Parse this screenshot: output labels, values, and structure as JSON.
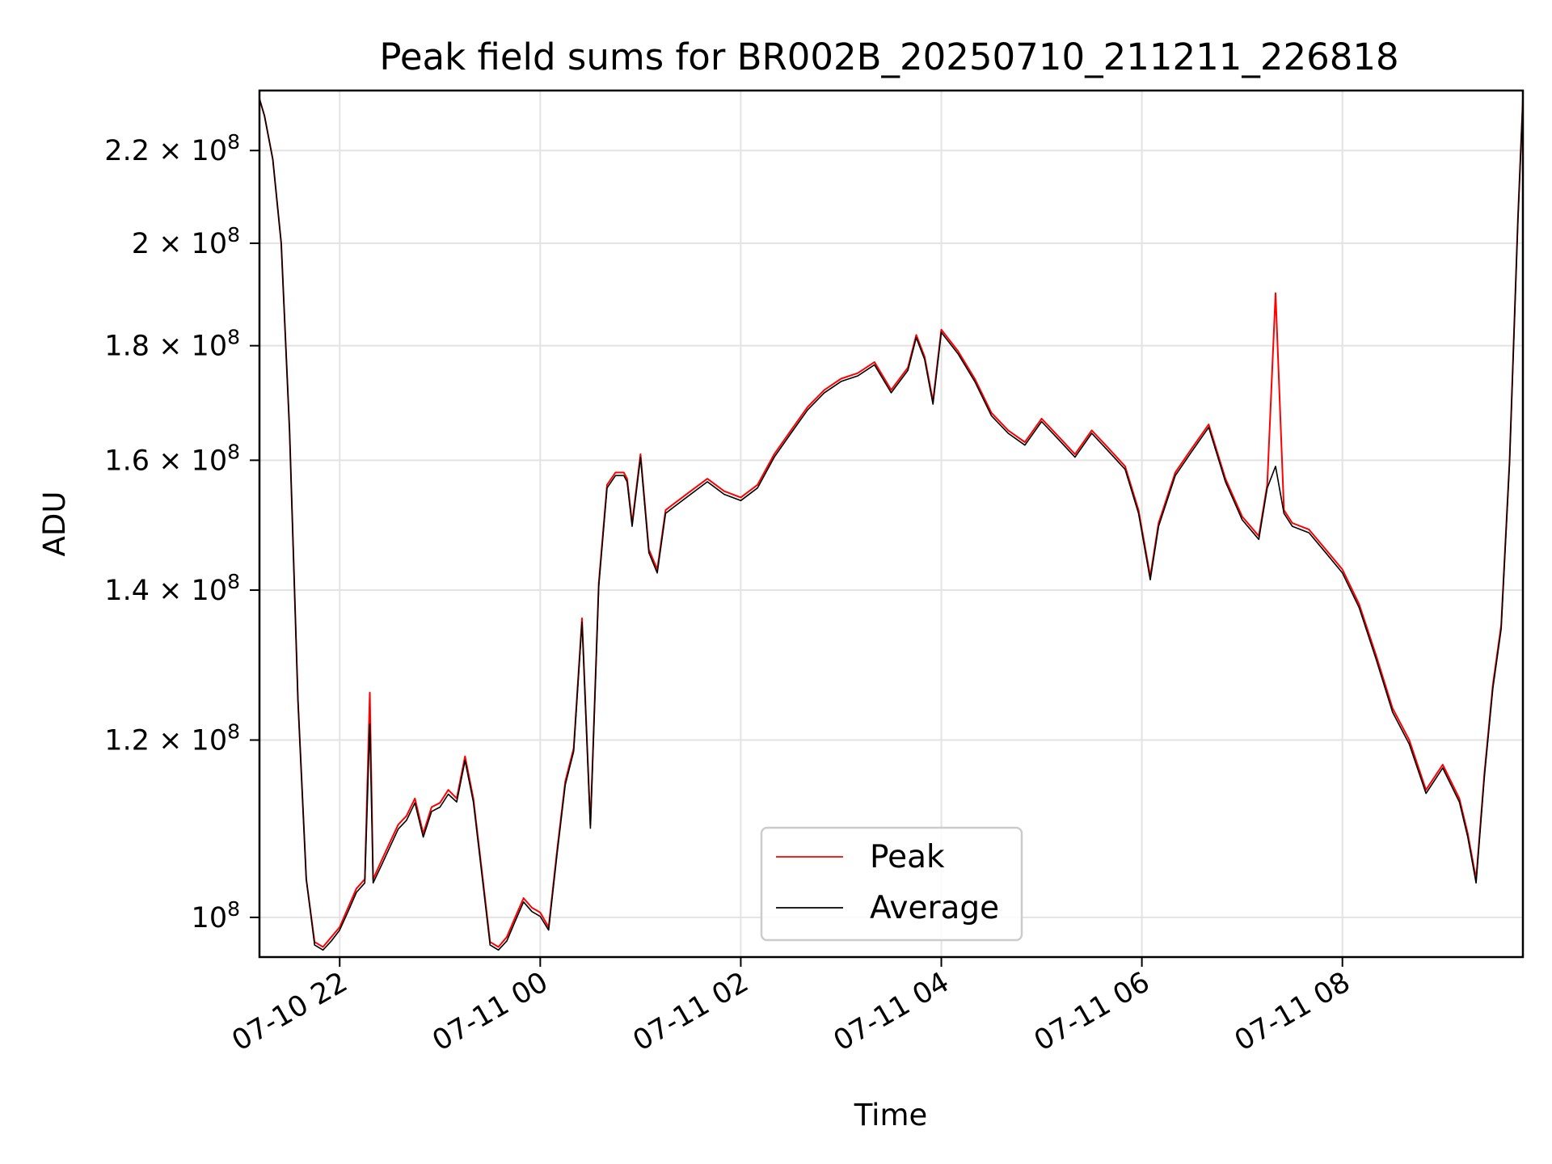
{
  "chart_data": {
    "type": "line",
    "title": "Peak field sums for BR002B_20250710_211211_226818",
    "xlabel": "Time",
    "ylabel": "ADU",
    "yscale": "log",
    "grid": true,
    "legend_position": "lower-center",
    "x_ticks": [
      {
        "value": "2025-07-10T22:00",
        "label": "07-10 22"
      },
      {
        "value": "2025-07-11T00:00",
        "label": "07-11 00"
      },
      {
        "value": "2025-07-11T02:00",
        "label": "07-11 02"
      },
      {
        "value": "2025-07-11T04:00",
        "label": "07-11 04"
      },
      {
        "value": "2025-07-11T06:00",
        "label": "07-11 06"
      },
      {
        "value": "2025-07-11T08:00",
        "label": "07-11 08"
      }
    ],
    "y_ticks": [
      {
        "value": 100000000,
        "mantissa": "",
        "base": "10",
        "exp": "8"
      },
      {
        "value": 120000000,
        "mantissa": "1.2",
        "base": "10",
        "exp": "8"
      },
      {
        "value": 140000000,
        "mantissa": "1.4",
        "base": "10",
        "exp": "8"
      },
      {
        "value": 160000000,
        "mantissa": "1.6",
        "base": "10",
        "exp": "8"
      },
      {
        "value": 180000000,
        "mantissa": "1.8",
        "base": "10",
        "exp": "8"
      },
      {
        "value": 200000000,
        "mantissa": "2",
        "base": "10",
        "exp": "8"
      },
      {
        "value": 220000000,
        "mantissa": "2.2",
        "base": "10",
        "exp": "8"
      }
    ],
    "xlim": [
      "2025-07-10T21:12",
      "2025-07-11T09:48"
    ],
    "ylim": [
      96000000,
      234000000
    ],
    "colors": {
      "peak": "#ff0000",
      "average": "#000000"
    },
    "series": [
      {
        "name": "Peak",
        "key": "peak",
        "x": [
          "2025-07-10T21:12",
          "2025-07-10T21:15",
          "2025-07-10T21:20",
          "2025-07-10T21:25",
          "2025-07-10T21:30",
          "2025-07-10T21:35",
          "2025-07-10T21:40",
          "2025-07-10T21:45",
          "2025-07-10T21:50",
          "2025-07-10T21:55",
          "2025-07-10T22:00",
          "2025-07-10T22:05",
          "2025-07-10T22:10",
          "2025-07-10T22:15",
          "2025-07-10T22:18",
          "2025-07-10T22:20",
          "2025-07-10T22:25",
          "2025-07-10T22:30",
          "2025-07-10T22:35",
          "2025-07-10T22:40",
          "2025-07-10T22:45",
          "2025-07-10T22:50",
          "2025-07-10T22:55",
          "2025-07-10T23:00",
          "2025-07-10T23:05",
          "2025-07-10T23:10",
          "2025-07-10T23:15",
          "2025-07-10T23:20",
          "2025-07-10T23:25",
          "2025-07-10T23:30",
          "2025-07-10T23:35",
          "2025-07-10T23:40",
          "2025-07-10T23:45",
          "2025-07-10T23:50",
          "2025-07-10T23:55",
          "2025-07-11T00:00",
          "2025-07-11T00:05",
          "2025-07-11T00:10",
          "2025-07-11T00:15",
          "2025-07-11T00:20",
          "2025-07-11T00:25",
          "2025-07-11T00:30",
          "2025-07-11T00:35",
          "2025-07-11T00:40",
          "2025-07-11T00:45",
          "2025-07-11T00:50",
          "2025-07-11T00:52",
          "2025-07-11T00:55",
          "2025-07-11T01:00",
          "2025-07-11T01:05",
          "2025-07-11T01:10",
          "2025-07-11T01:15",
          "2025-07-11T01:20",
          "2025-07-11T01:30",
          "2025-07-11T01:40",
          "2025-07-11T01:50",
          "2025-07-11T02:00",
          "2025-07-11T02:10",
          "2025-07-11T02:20",
          "2025-07-11T02:30",
          "2025-07-11T02:40",
          "2025-07-11T02:50",
          "2025-07-11T03:00",
          "2025-07-11T03:10",
          "2025-07-11T03:20",
          "2025-07-11T03:30",
          "2025-07-11T03:40",
          "2025-07-11T03:45",
          "2025-07-11T03:50",
          "2025-07-11T03:55",
          "2025-07-11T04:00",
          "2025-07-11T04:10",
          "2025-07-11T04:20",
          "2025-07-11T04:30",
          "2025-07-11T04:40",
          "2025-07-11T04:50",
          "2025-07-11T05:00",
          "2025-07-11T05:10",
          "2025-07-11T05:20",
          "2025-07-11T05:30",
          "2025-07-11T05:40",
          "2025-07-11T05:50",
          "2025-07-11T05:58",
          "2025-07-11T06:05",
          "2025-07-11T06:10",
          "2025-07-11T06:20",
          "2025-07-11T06:30",
          "2025-07-11T06:40",
          "2025-07-11T06:50",
          "2025-07-11T07:00",
          "2025-07-11T07:10",
          "2025-07-11T07:15",
          "2025-07-11T07:20",
          "2025-07-11T07:25",
          "2025-07-11T07:30",
          "2025-07-11T07:40",
          "2025-07-11T07:50",
          "2025-07-11T08:00",
          "2025-07-11T08:10",
          "2025-07-11T08:20",
          "2025-07-11T08:30",
          "2025-07-11T08:40",
          "2025-07-11T08:50",
          "2025-07-11T09:00",
          "2025-07-11T09:10",
          "2025-07-11T09:15",
          "2025-07-11T09:20",
          "2025-07-11T09:25",
          "2025-07-11T09:30",
          "2025-07-11T09:35",
          "2025-07-11T09:40",
          "2025-07-11T09:45",
          "2025-07-11T09:48"
        ],
        "values": [
          232000000,
          228000000,
          218000000,
          200000000,
          165000000,
          125000000,
          104000000,
          97500000,
          97000000,
          98000000,
          99000000,
          101000000,
          103000000,
          104000000,
          126000000,
          104000000,
          106000000,
          108000000,
          110000000,
          111000000,
          113000000,
          109000000,
          112000000,
          112500000,
          114000000,
          113000000,
          118000000,
          113000000,
          105000000,
          97500000,
          97000000,
          98000000,
          100000000,
          102000000,
          101000000,
          100500000,
          99000000,
          107000000,
          115000000,
          119000000,
          136000000,
          110000000,
          141000000,
          156000000,
          158000000,
          158000000,
          157000000,
          150000000,
          161000000,
          146000000,
          143000000,
          152000000,
          153000000,
          155000000,
          157000000,
          155000000,
          154000000,
          156000000,
          161000000,
          165000000,
          169000000,
          172000000,
          174000000,
          175000000,
          177000000,
          172000000,
          176000000,
          182000000,
          178000000,
          170000000,
          183000000,
          179000000,
          174000000,
          168000000,
          165000000,
          163000000,
          167000000,
          164000000,
          161000000,
          165000000,
          162000000,
          159000000,
          152000000,
          142000000,
          150000000,
          158000000,
          162000000,
          166000000,
          157000000,
          151000000,
          148000000,
          156000000,
          190000000,
          152000000,
          150000000,
          149000000,
          146000000,
          143000000,
          138000000,
          131000000,
          124000000,
          120000000,
          114000000,
          117000000,
          113000000,
          109000000,
          104000000,
          116000000,
          127000000,
          135000000,
          160000000,
          205000000,
          232000000
        ]
      },
      {
        "name": "Average",
        "key": "average",
        "x": [
          "2025-07-10T21:12",
          "2025-07-10T21:15",
          "2025-07-10T21:20",
          "2025-07-10T21:25",
          "2025-07-10T21:30",
          "2025-07-10T21:35",
          "2025-07-10T21:40",
          "2025-07-10T21:45",
          "2025-07-10T21:50",
          "2025-07-10T21:55",
          "2025-07-10T22:00",
          "2025-07-10T22:05",
          "2025-07-10T22:10",
          "2025-07-10T22:15",
          "2025-07-10T22:18",
          "2025-07-10T22:20",
          "2025-07-10T22:25",
          "2025-07-10T22:30",
          "2025-07-10T22:35",
          "2025-07-10T22:40",
          "2025-07-10T22:45",
          "2025-07-10T22:50",
          "2025-07-10T22:55",
          "2025-07-10T23:00",
          "2025-07-10T23:05",
          "2025-07-10T23:10",
          "2025-07-10T23:15",
          "2025-07-10T23:20",
          "2025-07-10T23:25",
          "2025-07-10T23:30",
          "2025-07-10T23:35",
          "2025-07-10T23:40",
          "2025-07-10T23:45",
          "2025-07-10T23:50",
          "2025-07-10T23:55",
          "2025-07-11T00:00",
          "2025-07-11T00:05",
          "2025-07-11T00:10",
          "2025-07-11T00:15",
          "2025-07-11T00:20",
          "2025-07-11T00:25",
          "2025-07-11T00:30",
          "2025-07-11T00:35",
          "2025-07-11T00:40",
          "2025-07-11T00:45",
          "2025-07-11T00:50",
          "2025-07-11T00:52",
          "2025-07-11T00:55",
          "2025-07-11T01:00",
          "2025-07-11T01:05",
          "2025-07-11T01:10",
          "2025-07-11T01:15",
          "2025-07-11T01:20",
          "2025-07-11T01:30",
          "2025-07-11T01:40",
          "2025-07-11T01:50",
          "2025-07-11T02:00",
          "2025-07-11T02:10",
          "2025-07-11T02:20",
          "2025-07-11T02:30",
          "2025-07-11T02:40",
          "2025-07-11T02:50",
          "2025-07-11T03:00",
          "2025-07-11T03:10",
          "2025-07-11T03:20",
          "2025-07-11T03:30",
          "2025-07-11T03:40",
          "2025-07-11T03:45",
          "2025-07-11T03:50",
          "2025-07-11T03:55",
          "2025-07-11T04:00",
          "2025-07-11T04:10",
          "2025-07-11T04:20",
          "2025-07-11T04:30",
          "2025-07-11T04:40",
          "2025-07-11T04:50",
          "2025-07-11T05:00",
          "2025-07-11T05:10",
          "2025-07-11T05:20",
          "2025-07-11T05:30",
          "2025-07-11T05:40",
          "2025-07-11T05:50",
          "2025-07-11T05:58",
          "2025-07-11T06:05",
          "2025-07-11T06:10",
          "2025-07-11T06:20",
          "2025-07-11T06:30",
          "2025-07-11T06:40",
          "2025-07-11T06:50",
          "2025-07-11T07:00",
          "2025-07-11T07:10",
          "2025-07-11T07:15",
          "2025-07-11T07:20",
          "2025-07-11T07:25",
          "2025-07-11T07:30",
          "2025-07-11T07:40",
          "2025-07-11T07:50",
          "2025-07-11T08:00",
          "2025-07-11T08:10",
          "2025-07-11T08:20",
          "2025-07-11T08:30",
          "2025-07-11T08:40",
          "2025-07-11T08:50",
          "2025-07-11T09:00",
          "2025-07-11T09:10",
          "2025-07-11T09:15",
          "2025-07-11T09:20",
          "2025-07-11T09:25",
          "2025-07-11T09:30",
          "2025-07-11T09:35",
          "2025-07-11T09:40",
          "2025-07-11T09:45",
          "2025-07-11T09:48"
        ],
        "values": [
          232000000,
          228000000,
          218000000,
          200000000,
          165000000,
          125000000,
          104000000,
          97200000,
          96700000,
          97600000,
          98700000,
          100600000,
          102600000,
          103600000,
          122000000,
          103600000,
          105500000,
          107500000,
          109500000,
          110500000,
          112500000,
          108600000,
          111500000,
          112000000,
          113500000,
          112600000,
          117500000,
          112600000,
          104600000,
          97200000,
          96700000,
          97600000,
          99600000,
          101600000,
          100600000,
          100100000,
          98700000,
          106600000,
          114600000,
          118600000,
          135500000,
          109600000,
          140500000,
          155500000,
          157500000,
          157500000,
          156500000,
          149500000,
          160500000,
          145500000,
          142500000,
          151500000,
          152500000,
          154500000,
          156500000,
          154500000,
          153500000,
          155500000,
          160500000,
          164500000,
          168500000,
          171500000,
          173500000,
          174500000,
          176500000,
          171500000,
          175500000,
          181500000,
          177500000,
          169500000,
          182500000,
          178500000,
          173500000,
          167500000,
          164500000,
          162500000,
          166500000,
          163500000,
          160500000,
          164500000,
          161500000,
          158500000,
          151500000,
          141500000,
          149500000,
          157500000,
          161500000,
          165500000,
          156500000,
          150500000,
          147500000,
          155500000,
          159000000,
          151500000,
          149500000,
          148500000,
          145500000,
          142500000,
          137500000,
          130500000,
          123500000,
          119500000,
          113600000,
          116600000,
          112600000,
          108600000,
          103600000,
          115600000,
          126500000,
          134500000,
          159500000,
          204500000,
          232000000
        ]
      }
    ]
  }
}
